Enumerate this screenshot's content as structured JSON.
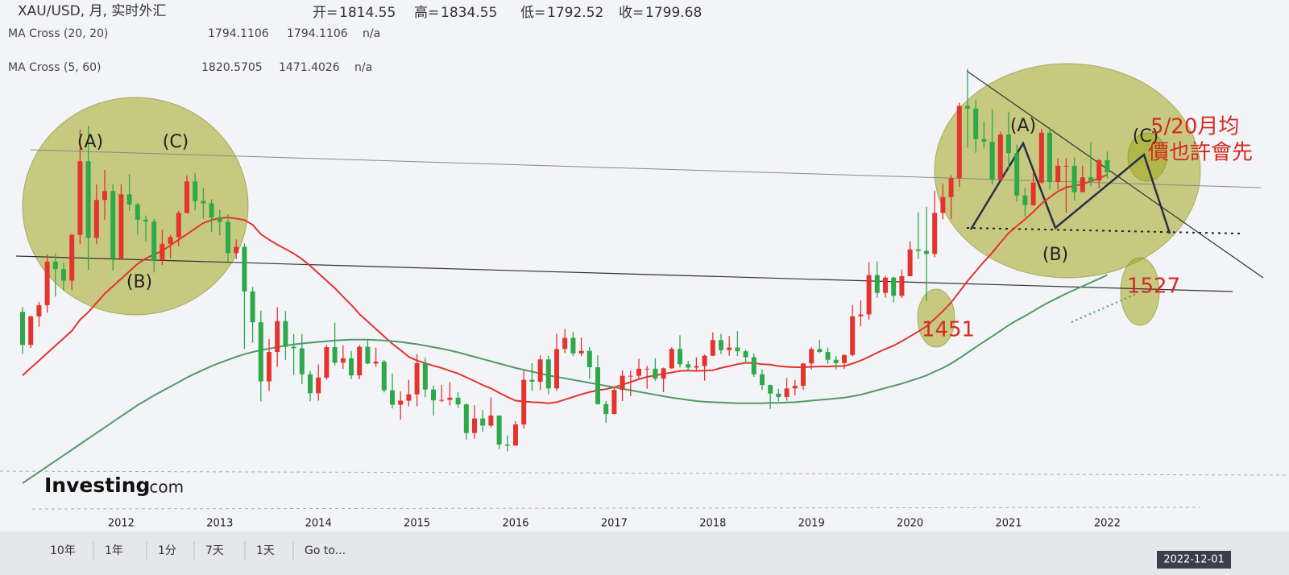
{
  "header": {
    "symbol": "XAU/USD, 月, 实时外汇",
    "ohlc": [
      {
        "label": "开=",
        "value": 1814.55
      },
      {
        "label": "高=",
        "value": 1834.55
      },
      {
        "label": "低=",
        "value": 1792.52
      },
      {
        "label": "收=",
        "value": 1799.68
      }
    ]
  },
  "indicators": [
    {
      "name": "MA Cross (20, 20)",
      "values": [
        1794.1106,
        1794.1106
      ],
      "colors": [
        "#d0302a",
        "#d0302a"
      ],
      "status": "n/a"
    },
    {
      "name": "MA Cross (5, 60)",
      "values": [
        1820.5705,
        1471.4026
      ],
      "colors": [
        "#222222",
        "#1f8a3c"
      ],
      "status": "n/a"
    }
  ],
  "chart_data": {
    "type": "candlestick",
    "categories": [
      null,
      null,
      null,
      null,
      null,
      null,
      null,
      null,
      null,
      null,
      null,
      null,
      "2012",
      null,
      null,
      null,
      null,
      null,
      null,
      null,
      null,
      null,
      null,
      null,
      "2013",
      null,
      null,
      null,
      null,
      null,
      null,
      null,
      null,
      null,
      null,
      null,
      "2014",
      null,
      null,
      null,
      null,
      null,
      null,
      null,
      null,
      null,
      null,
      null,
      "2015",
      null,
      null,
      null,
      null,
      null,
      null,
      null,
      null,
      null,
      null,
      null,
      "2016",
      null,
      null,
      null,
      null,
      null,
      null,
      null,
      null,
      null,
      null,
      null,
      "2017",
      null,
      null,
      null,
      null,
      null,
      null,
      null,
      null,
      null,
      null,
      null,
      "2018",
      null,
      null,
      null,
      null,
      null,
      null,
      null,
      null,
      null,
      null,
      null,
      "2019",
      null,
      null,
      null,
      null,
      null,
      null,
      null,
      null,
      null,
      null,
      null,
      "2020",
      null,
      null,
      null,
      null,
      null,
      null,
      null,
      null,
      null,
      null,
      null,
      "2021",
      null,
      null,
      null,
      null,
      null,
      null,
      null,
      null,
      null,
      null,
      null,
      "2022"
    ],
    "open": [
      1421,
      1332,
      1409,
      1439,
      1556,
      1536,
      1505,
      1628,
      1826,
      1620,
      1722,
      1746,
      1565,
      1737,
      1710,
      1669,
      1664,
      1560,
      1604,
      1622,
      1687,
      1772,
      1719,
      1713,
      1675,
      1663,
      1579,
      1596,
      1476,
      1393,
      1234,
      1313,
      1396,
      1327,
      1323,
      1253,
      1202,
      1244,
      1326,
      1284,
      1296,
      1250,
      1327,
      1282,
      1287,
      1210,
      1171,
      1182,
      1199,
      1283,
      1212,
      1183,
      1184,
      1190,
      1172,
      1095,
      1134,
      1115,
      1142,
      1064,
      1061,
      1118,
      1238,
      1233,
      1293,
      1215,
      1321,
      1351,
      1309,
      1316,
      1272,
      1173,
      1146,
      1211,
      1249,
      1249,
      1268,
      1268,
      1241,
      1269,
      1321,
      1280,
      1271,
      1275,
      1303,
      1345,
      1318,
      1325,
      1315,
      1299,
      1253,
      1224,
      1201,
      1192,
      1215,
      1222,
      1282,
      1321,
      1313,
      1292,
      1283,
      1305,
      1409,
      1414,
      1520,
      1472,
      1513,
      1464,
      1517,
      1589,
      1585,
      1577,
      1687,
      1730,
      1781,
      1975,
      1968,
      1886,
      1879,
      1776,
      1898,
      1848,
      1734,
      1708,
      1769,
      1903,
      1770,
      1814,
      1814,
      1743,
      1783,
      1774,
      1829
    ],
    "high": [
      1434,
      1411,
      1448,
      1576,
      1577,
      1553,
      1632,
      1912,
      1921,
      1764,
      1803,
      1764,
      1764,
      1791,
      1715,
      1680,
      1671,
      1642,
      1628,
      1693,
      1788,
      1795,
      1754,
      1724,
      1695,
      1684,
      1616,
      1605,
      1488,
      1424,
      1348,
      1434,
      1423,
      1361,
      1362,
      1262,
      1280,
      1332,
      1392,
      1331,
      1315,
      1332,
      1345,
      1325,
      1292,
      1255,
      1207,
      1238,
      1307,
      1298,
      1223,
      1224,
      1232,
      1205,
      1175,
      1170,
      1157,
      1191,
      1142,
      1088,
      1127,
      1263,
      1283,
      1304,
      1303,
      1362,
      1375,
      1367,
      1352,
      1326,
      1304,
      1181,
      1220,
      1264,
      1263,
      1295,
      1276,
      1296,
      1271,
      1326,
      1358,
      1289,
      1299,
      1306,
      1366,
      1362,
      1356,
      1369,
      1320,
      1309,
      1266,
      1225,
      1214,
      1243,
      1238,
      1284,
      1326,
      1346,
      1325,
      1302,
      1306,
      1439,
      1452,
      1555,
      1557,
      1518,
      1516,
      1535,
      1611,
      1689,
      1704,
      1747,
      1765,
      1789,
      1984,
      2075,
      1992,
      1933,
      1966,
      1906,
      1959,
      1871,
      1755,
      1798,
      1913,
      1917,
      1834,
      1834,
      1836,
      1814,
      1877,
      1832,
      1853
    ],
    "low": [
      1308,
      1324,
      1381,
      1419,
      1462,
      1478,
      1480,
      1603,
      1534,
      1603,
      1669,
      1532,
      1562,
      1692,
      1628,
      1611,
      1527,
      1547,
      1565,
      1598,
      1686,
      1694,
      1672,
      1636,
      1627,
      1555,
      1563,
      1321,
      1338,
      1180,
      1208,
      1273,
      1292,
      1251,
      1227,
      1180,
      1182,
      1238,
      1277,
      1268,
      1240,
      1240,
      1280,
      1273,
      1204,
      1161,
      1131,
      1167,
      1167,
      1191,
      1142,
      1178,
      1169,
      1162,
      1077,
      1080,
      1098,
      1110,
      1052,
      1046,
      1062,
      1107,
      1208,
      1211,
      1199,
      1208,
      1310,
      1302,
      1302,
      1241,
      1171,
      1122,
      1146,
      1181,
      1194,
      1242,
      1214,
      1236,
      1205,
      1268,
      1271,
      1261,
      1264,
      1236,
      1302,
      1307,
      1303,
      1302,
      1282,
      1246,
      1211,
      1160,
      1180,
      1182,
      1196,
      1211,
      1266,
      1310,
      1281,
      1266,
      1267,
      1301,
      1382,
      1400,
      1459,
      1459,
      1446,
      1458,
      1517,
      1563,
      1451,
      1568,
      1670,
      1671,
      1757,
      1863,
      1849,
      1860,
      1764,
      1775,
      1802,
      1717,
      1677,
      1706,
      1765,
      1750,
      1750,
      1688,
      1721,
      1746,
      1759,
      1753,
      1780
    ],
    "close": [
      1332,
      1409,
      1439,
      1556,
      1536,
      1505,
      1628,
      1826,
      1620,
      1722,
      1746,
      1565,
      1737,
      1710,
      1669,
      1664,
      1560,
      1604,
      1622,
      1687,
      1772,
      1719,
      1713,
      1675,
      1663,
      1579,
      1596,
      1476,
      1393,
      1234,
      1313,
      1396,
      1327,
      1323,
      1253,
      1202,
      1244,
      1326,
      1284,
      1296,
      1250,
      1327,
      1282,
      1287,
      1210,
      1171,
      1182,
      1199,
      1283,
      1212,
      1183,
      1184,
      1190,
      1172,
      1095,
      1134,
      1115,
      1142,
      1064,
      1061,
      1118,
      1238,
      1233,
      1293,
      1215,
      1321,
      1351,
      1309,
      1316,
      1272,
      1173,
      1146,
      1211,
      1249,
      1249,
      1268,
      1268,
      1241,
      1269,
      1321,
      1280,
      1271,
      1275,
      1303,
      1345,
      1318,
      1325,
      1315,
      1299,
      1253,
      1224,
      1201,
      1192,
      1215,
      1222,
      1282,
      1321,
      1313,
      1292,
      1283,
      1305,
      1409,
      1414,
      1520,
      1472,
      1513,
      1464,
      1517,
      1589,
      1585,
      1577,
      1687,
      1730,
      1781,
      1975,
      1968,
      1886,
      1879,
      1776,
      1898,
      1848,
      1734,
      1708,
      1769,
      1903,
      1770,
      1814,
      1814,
      1743,
      1783,
      1774,
      1829,
      1797
    ],
    "up_color": "#e3342f",
    "down_color": "#2ea84b",
    "series": [
      {
        "color": "#e3342f",
        "values": [
          1250,
          1270,
          1290,
          1310,
          1330,
          1350,
          1370,
          1400,
          1420,
          1445,
          1470,
          1490,
          1510,
          1530,
          1550,
          1565,
          1575,
          1585,
          1600,
          1615,
          1630,
          1645,
          1660,
          1668,
          1673,
          1675,
          1672,
          1668,
          1655,
          1630,
          1615,
          1602,
          1590,
          1578,
          1563,
          1545,
          1525,
          1505,
          1485,
          1462,
          1440,
          1415,
          1395,
          1375,
          1355,
          1335,
          1318,
          1300,
          1290,
          1283,
          1276,
          1270,
          1262,
          1255,
          1245,
          1235,
          1224,
          1215,
          1203,
          1192,
          1182,
          1180,
          1178,
          1177,
          1175,
          1178,
          1185,
          1192,
          1199,
          1205,
          1210,
          1213,
          1218,
          1225,
          1232,
          1240,
          1246,
          1250,
          1254,
          1258,
          1262,
          1263,
          1262,
          1263,
          1264,
          1270,
          1275,
          1280,
          1284,
          1283,
          1280,
          1279,
          1275,
          1273,
          1272,
          1272,
          1273,
          1274,
          1274,
          1275,
          1275,
          1282,
          1290,
          1300,
          1311,
          1321,
          1330,
          1342,
          1355,
          1368,
          1382,
          1402,
          1423,
          1446,
          1475,
          1504,
          1530,
          1556,
          1580,
          1607,
          1633,
          1652,
          1670,
          1690,
          1712,
          1729,
          1745,
          1756,
          1760,
          1765,
          1772,
          1780,
          1790
        ]
      },
      {
        "color": "#4f9a6a",
        "values": [
          960,
          975,
          990,
          1005,
          1020,
          1035,
          1050,
          1065,
          1080,
          1095,
          1110,
          1125,
          1140,
          1155,
          1170,
          1183,
          1196,
          1208,
          1220,
          1232,
          1244,
          1255,
          1265,
          1275,
          1284,
          1292,
          1300,
          1307,
          1313,
          1318,
          1322,
          1326,
          1330,
          1333,
          1336,
          1338,
          1340,
          1342,
          1344,
          1345,
          1346,
          1346,
          1346,
          1345,
          1344,
          1342,
          1340,
          1337,
          1334,
          1330,
          1326,
          1322,
          1317,
          1312,
          1306,
          1300,
          1294,
          1288,
          1282,
          1276,
          1270,
          1265,
          1260,
          1255,
          1250,
          1246,
          1242,
          1238,
          1234,
          1230,
          1226,
          1222,
          1218,
          1214,
          1210,
          1206,
          1202,
          1198,
          1194,
          1190,
          1187,
          1184,
          1181,
          1179,
          1178,
          1177,
          1176,
          1175,
          1175,
          1175,
          1175,
          1176,
          1176,
          1177,
          1178,
          1180,
          1182,
          1184,
          1186,
          1188,
          1190,
          1194,
          1198,
          1204,
          1210,
          1216,
          1222,
          1228,
          1235,
          1242,
          1250,
          1260,
          1270,
          1282,
          1296,
          1311,
          1326,
          1341,
          1355,
          1370,
          1385,
          1398,
          1410,
          1423,
          1436,
          1448,
          1459,
          1470,
          1480,
          1490,
          1500,
          1510,
          1520
        ]
      }
    ],
    "ylim": [
      700,
      2260
    ]
  },
  "annotations": [
    "(A)",
    "(C)",
    "(B)",
    "(A)",
    "(C)",
    "(B)",
    "1451",
    "1527",
    "5/20月均",
    "價也許會先"
  ],
  "watermark": {
    "brand": "Investing",
    "suffix": ".com"
  },
  "toolbar": [
    "10年",
    "1年",
    "1分",
    "7天",
    "1天",
    "Go to..."
  ],
  "cursor_date": "2022-12-01"
}
